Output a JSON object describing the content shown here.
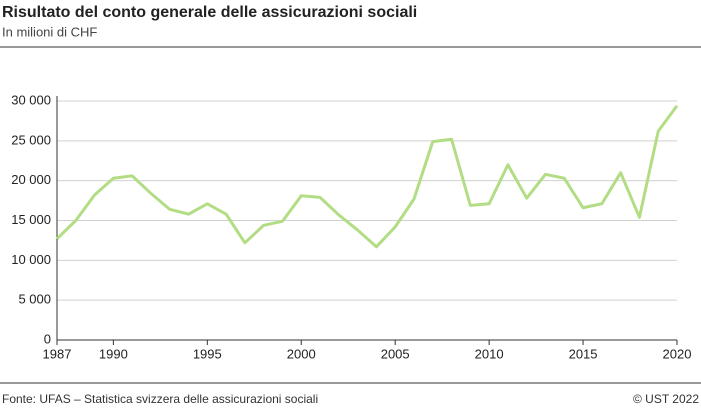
{
  "chart_data": {
    "type": "line",
    "title": "Risultato del conto generale delle assicurazioni sociali",
    "subtitle": "In milioni di CHF",
    "source": "Fonte: UFAS – Statistica svizzera delle assicurazioni sociali",
    "credit": "© UST 2022",
    "x": [
      1987,
      1988,
      1989,
      1990,
      1991,
      1992,
      1993,
      1994,
      1995,
      1996,
      1997,
      1998,
      1999,
      2000,
      2001,
      2002,
      2003,
      2004,
      2005,
      2006,
      2007,
      2008,
      2009,
      2010,
      2011,
      2012,
      2013,
      2014,
      2015,
      2016,
      2017,
      2018,
      2019,
      2020
    ],
    "series": [
      {
        "color": "#b3dd84",
        "values": [
          12700,
          15000,
          18200,
          20300,
          20600,
          18400,
          16400,
          15800,
          17100,
          15800,
          12200,
          14400,
          14900,
          18100,
          17900,
          15700,
          13800,
          11700,
          14200,
          17700,
          24900,
          25200,
          16900,
          17100,
          22000,
          17800,
          20800,
          20300,
          16600,
          17100,
          21000,
          15400,
          26200,
          29400
        ]
      }
    ],
    "xlim": [
      1987,
      2020
    ],
    "xticks": [
      1987,
      1990,
      1995,
      2000,
      2005,
      2010,
      2015,
      2020
    ],
    "ylim": [
      0,
      30000
    ],
    "yticks": [
      0,
      {
        "value": 5000,
        "label": "5 000"
      },
      {
        "value": 10000,
        "label": "10 000"
      },
      {
        "value": 15000,
        "label": "15 000"
      },
      {
        "value": 20000,
        "label": "20 000"
      },
      {
        "value": 25000,
        "label": "25 000"
      },
      {
        "value": 30000,
        "label": "30 000"
      }
    ],
    "grid": true
  }
}
